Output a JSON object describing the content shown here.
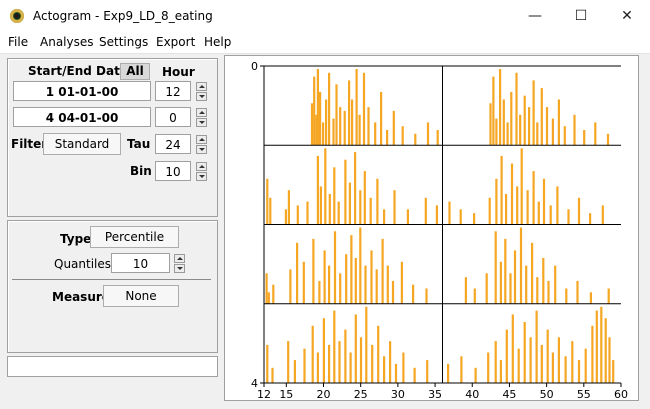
{
  "window": {
    "title": "Actogram - Exp9_LD_8_eating"
  },
  "menu": [
    "File",
    "Analyses",
    "Settings",
    "Export",
    "Help"
  ],
  "date_panel": {
    "header": "Start/End Date",
    "all_label": "All",
    "hour_label": "Hour",
    "start_date": "1  01-01-00",
    "start_hour": "12",
    "end_date": "4  04-01-00",
    "end_hour": "0",
    "filter_label": "Filter",
    "filter_value": "Standard",
    "tau_label": "Tau",
    "tau_value": "24",
    "bin_label": "Bin",
    "bin_value": "10"
  },
  "type_panel": {
    "type_label": "Type",
    "type_value": "Percentile",
    "quantiles_label": "Quantiles",
    "quantiles_value": "10",
    "measure_label": "Measure",
    "measure_value": "None"
  },
  "status_text": "",
  "chart_data": {
    "type": "bar",
    "title": "",
    "bar_color": "#f5a623",
    "y_ticks": [
      "0",
      "4"
    ],
    "x_ticks": [
      "12",
      "15",
      "20",
      "25",
      "30",
      "35",
      "40",
      "45",
      "50",
      "55",
      "60"
    ],
    "xlim": [
      12,
      60
    ],
    "ylim": [
      0,
      4
    ],
    "rows": 4,
    "x_range": [
      12,
      60
    ],
    "day_divider_x": 36,
    "rows_data": [
      {
        "bins": [
          [
            18.3,
            0.55
          ],
          [
            18.6,
            0.9
          ],
          [
            18.9,
            0.4
          ],
          [
            19.1,
            1.0
          ],
          [
            19.4,
            0.7
          ],
          [
            19.8,
            0.3
          ],
          [
            20.2,
            0.6
          ],
          [
            20.6,
            0.95
          ],
          [
            21.2,
            0.35
          ],
          [
            21.6,
            0.8
          ],
          [
            22.1,
            0.5
          ],
          [
            22.7,
            0.45
          ],
          [
            23.3,
            0.85
          ],
          [
            23.7,
            0.6
          ],
          [
            24.3,
            1.0
          ],
          [
            24.7,
            0.4
          ],
          [
            25.3,
            0.95
          ],
          [
            25.9,
            0.5
          ],
          [
            26.8,
            0.3
          ],
          [
            27.6,
            0.7
          ],
          [
            28.4,
            0.2
          ],
          [
            29.3,
            0.45
          ],
          [
            30.5,
            0.25
          ],
          [
            32.2,
            0.15
          ],
          [
            33.9,
            0.3
          ],
          [
            35.2,
            0.2
          ],
          [
            42.3,
            0.55
          ],
          [
            42.7,
            0.9
          ],
          [
            43.1,
            0.35
          ],
          [
            43.6,
            1.0
          ],
          [
            44.1,
            0.6
          ],
          [
            44.6,
            0.3
          ],
          [
            45.1,
            0.7
          ],
          [
            45.8,
            0.95
          ],
          [
            46.3,
            0.4
          ],
          [
            46.9,
            0.65
          ],
          [
            47.5,
            0.5
          ],
          [
            48.1,
            0.85
          ],
          [
            48.6,
            0.3
          ],
          [
            49.2,
            0.75
          ],
          [
            49.9,
            0.5
          ],
          [
            50.7,
            0.35
          ],
          [
            51.5,
            0.6
          ],
          [
            52.3,
            0.25
          ],
          [
            53.6,
            0.4
          ],
          [
            54.9,
            0.2
          ],
          [
            56.4,
            0.3
          ],
          [
            58.1,
            0.15
          ]
        ]
      },
      {
        "bins": [
          [
            12.3,
            0.6
          ],
          [
            12.7,
            0.35
          ],
          [
            14.8,
            0.2
          ],
          [
            15.2,
            0.45
          ],
          [
            16.4,
            0.25
          ],
          [
            17.7,
            0.3
          ],
          [
            19.1,
            0.9
          ],
          [
            19.5,
            0.5
          ],
          [
            20.1,
            1.0
          ],
          [
            20.7,
            0.4
          ],
          [
            21.3,
            0.75
          ],
          [
            21.9,
            0.3
          ],
          [
            22.8,
            0.85
          ],
          [
            23.4,
            0.55
          ],
          [
            24.1,
            0.95
          ],
          [
            24.8,
            0.45
          ],
          [
            25.4,
            0.7
          ],
          [
            26.2,
            0.35
          ],
          [
            27.1,
            0.6
          ],
          [
            28.0,
            0.2
          ],
          [
            29.4,
            0.45
          ],
          [
            31.2,
            0.2
          ],
          [
            33.6,
            0.35
          ],
          [
            35.1,
            0.25
          ],
          [
            36.8,
            0.3
          ],
          [
            38.3,
            0.2
          ],
          [
            40.1,
            0.15
          ],
          [
            42.2,
            0.35
          ],
          [
            43.1,
            0.6
          ],
          [
            43.8,
            0.9
          ],
          [
            44.4,
            0.4
          ],
          [
            45.2,
            0.8
          ],
          [
            45.9,
            0.5
          ],
          [
            46.5,
            1.0
          ],
          [
            47.3,
            0.45
          ],
          [
            48.1,
            0.7
          ],
          [
            48.8,
            0.3
          ],
          [
            49.5,
            0.6
          ],
          [
            50.4,
            0.25
          ],
          [
            51.3,
            0.5
          ],
          [
            52.8,
            0.2
          ],
          [
            54.2,
            0.35
          ],
          [
            55.7,
            0.15
          ],
          [
            57.4,
            0.25
          ]
        ]
      },
      {
        "bins": [
          [
            12.2,
            0.4
          ],
          [
            12.5,
            0.15
          ],
          [
            13.1,
            0.25
          ],
          [
            15.4,
            0.45
          ],
          [
            16.3,
            0.8
          ],
          [
            17.2,
            0.55
          ],
          [
            18.5,
            0.85
          ],
          [
            19.3,
            0.3
          ],
          [
            20.0,
            0.7
          ],
          [
            20.6,
            0.5
          ],
          [
            21.4,
            0.95
          ],
          [
            22.1,
            0.4
          ],
          [
            22.9,
            0.65
          ],
          [
            23.6,
            0.9
          ],
          [
            24.2,
            0.6
          ],
          [
            24.8,
            1.0
          ],
          [
            25.5,
            0.5
          ],
          [
            26.3,
            0.7
          ],
          [
            27.0,
            0.45
          ],
          [
            27.8,
            0.85
          ],
          [
            28.5,
            0.5
          ],
          [
            29.2,
            0.3
          ],
          [
            30.4,
            0.55
          ],
          [
            31.9,
            0.25
          ],
          [
            33.7,
            0.2
          ],
          [
            39.0,
            0.35
          ],
          [
            40.2,
            0.2
          ],
          [
            41.8,
            0.4
          ],
          [
            43.0,
            0.95
          ],
          [
            43.7,
            0.55
          ],
          [
            44.3,
            0.85
          ],
          [
            45.0,
            0.4
          ],
          [
            45.6,
            0.7
          ],
          [
            46.4,
            1.0
          ],
          [
            47.1,
            0.5
          ],
          [
            47.9,
            0.8
          ],
          [
            48.6,
            0.35
          ],
          [
            49.4,
            0.6
          ],
          [
            50.1,
            0.3
          ],
          [
            51.0,
            0.5
          ],
          [
            52.5,
            0.2
          ],
          [
            54.0,
            0.3
          ],
          [
            55.8,
            0.15
          ],
          [
            58.2,
            0.2
          ]
        ]
      },
      {
        "bins": [
          [
            12.3,
            0.5
          ],
          [
            13.0,
            0.2
          ],
          [
            15.1,
            0.55
          ],
          [
            16.0,
            0.3
          ],
          [
            17.3,
            0.45
          ],
          [
            18.4,
            0.75
          ],
          [
            19.1,
            0.4
          ],
          [
            19.9,
            0.85
          ],
          [
            20.6,
            0.5
          ],
          [
            21.3,
            0.95
          ],
          [
            22.0,
            0.55
          ],
          [
            22.8,
            0.7
          ],
          [
            23.5,
            0.4
          ],
          [
            24.2,
            0.9
          ],
          [
            24.9,
            0.6
          ],
          [
            25.6,
            1.0
          ],
          [
            26.4,
            0.5
          ],
          [
            27.2,
            0.75
          ],
          [
            28.0,
            0.35
          ],
          [
            28.8,
            0.55
          ],
          [
            29.6,
            0.25
          ],
          [
            30.6,
            0.4
          ],
          [
            32.1,
            0.2
          ],
          [
            33.8,
            0.3
          ],
          [
            36.6,
            0.25
          ],
          [
            38.4,
            0.35
          ],
          [
            40.3,
            0.2
          ],
          [
            42.0,
            0.4
          ],
          [
            43.0,
            0.55
          ],
          [
            43.7,
            0.3
          ],
          [
            44.5,
            0.7
          ],
          [
            45.3,
            0.9
          ],
          [
            46.1,
            0.45
          ],
          [
            46.9,
            0.8
          ],
          [
            47.7,
            0.6
          ],
          [
            48.5,
            0.95
          ],
          [
            49.2,
            0.5
          ],
          [
            50.0,
            0.7
          ],
          [
            50.7,
            0.4
          ],
          [
            51.5,
            0.6
          ],
          [
            52.4,
            0.35
          ],
          [
            53.3,
            0.55
          ],
          [
            54.2,
            0.3
          ],
          [
            55.1,
            0.45
          ],
          [
            56.0,
            0.75
          ],
          [
            56.6,
            0.95
          ],
          [
            57.2,
            1.0
          ],
          [
            57.8,
            0.85
          ],
          [
            58.3,
            0.6
          ],
          [
            58.8,
            0.3
          ]
        ]
      }
    ]
  }
}
